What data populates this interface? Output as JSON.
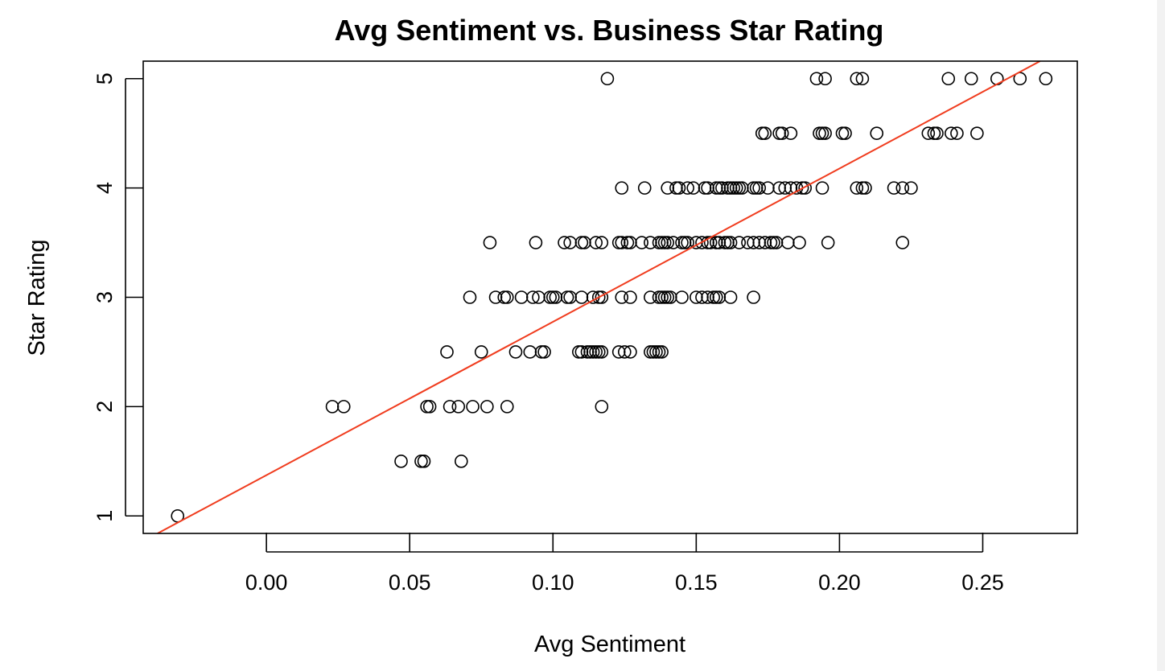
{
  "chart_data": {
    "type": "scatter",
    "title": "Avg Sentiment vs. Business Star Rating",
    "xlabel": "Avg Sentiment",
    "ylabel": "Star Rating",
    "xlim": [
      -0.043,
      0.283
    ],
    "ylim": [
      0.84,
      5.16
    ],
    "x_ticks": [
      0.0,
      0.05,
      0.1,
      0.15,
      0.2,
      0.25
    ],
    "x_tick_labels": [
      "0.00",
      "0.05",
      "0.10",
      "0.15",
      "0.20",
      "0.25"
    ],
    "y_ticks": [
      1,
      2,
      3,
      4,
      5
    ],
    "y_tick_labels": [
      "1",
      "2",
      "3",
      "4",
      "5"
    ],
    "grid": false,
    "legend": "none",
    "point_color": "#000000",
    "regression_line": {
      "color": "#f03c1e",
      "x": [
        -0.038,
        0.27
      ],
      "y": [
        0.84,
        5.16
      ]
    },
    "points": [
      [
        -0.031,
        1.0
      ],
      [
        0.023,
        2.0
      ],
      [
        0.027,
        2.0
      ],
      [
        0.056,
        2.0
      ],
      [
        0.057,
        2.0
      ],
      [
        0.064,
        2.0
      ],
      [
        0.067,
        2.0
      ],
      [
        0.072,
        2.0
      ],
      [
        0.077,
        2.0
      ],
      [
        0.084,
        2.0
      ],
      [
        0.117,
        2.0
      ],
      [
        0.047,
        1.5
      ],
      [
        0.054,
        1.5
      ],
      [
        0.055,
        1.5
      ],
      [
        0.068,
        1.5
      ],
      [
        0.063,
        2.5
      ],
      [
        0.075,
        2.5
      ],
      [
        0.087,
        2.5
      ],
      [
        0.092,
        2.5
      ],
      [
        0.096,
        2.5
      ],
      [
        0.097,
        2.5
      ],
      [
        0.109,
        2.5
      ],
      [
        0.11,
        2.5
      ],
      [
        0.112,
        2.5
      ],
      [
        0.113,
        2.5
      ],
      [
        0.114,
        2.5
      ],
      [
        0.115,
        2.5
      ],
      [
        0.116,
        2.5
      ],
      [
        0.117,
        2.5
      ],
      [
        0.123,
        2.5
      ],
      [
        0.125,
        2.5
      ],
      [
        0.127,
        2.5
      ],
      [
        0.134,
        2.5
      ],
      [
        0.135,
        2.5
      ],
      [
        0.136,
        2.5
      ],
      [
        0.137,
        2.5
      ],
      [
        0.138,
        2.5
      ],
      [
        0.071,
        3.0
      ],
      [
        0.08,
        3.0
      ],
      [
        0.083,
        3.0
      ],
      [
        0.084,
        3.0
      ],
      [
        0.089,
        3.0
      ],
      [
        0.093,
        3.0
      ],
      [
        0.095,
        3.0
      ],
      [
        0.099,
        3.0
      ],
      [
        0.1,
        3.0
      ],
      [
        0.101,
        3.0
      ],
      [
        0.105,
        3.0
      ],
      [
        0.106,
        3.0
      ],
      [
        0.11,
        3.0
      ],
      [
        0.114,
        3.0
      ],
      [
        0.116,
        3.0
      ],
      [
        0.117,
        3.0
      ],
      [
        0.124,
        3.0
      ],
      [
        0.127,
        3.0
      ],
      [
        0.134,
        3.0
      ],
      [
        0.137,
        3.0
      ],
      [
        0.138,
        3.0
      ],
      [
        0.139,
        3.0
      ],
      [
        0.14,
        3.0
      ],
      [
        0.141,
        3.0
      ],
      [
        0.145,
        3.0
      ],
      [
        0.15,
        3.0
      ],
      [
        0.152,
        3.0
      ],
      [
        0.154,
        3.0
      ],
      [
        0.156,
        3.0
      ],
      [
        0.157,
        3.0
      ],
      [
        0.158,
        3.0
      ],
      [
        0.162,
        3.0
      ],
      [
        0.17,
        3.0
      ],
      [
        0.078,
        3.5
      ],
      [
        0.094,
        3.5
      ],
      [
        0.104,
        3.5
      ],
      [
        0.106,
        3.5
      ],
      [
        0.11,
        3.5
      ],
      [
        0.111,
        3.5
      ],
      [
        0.115,
        3.5
      ],
      [
        0.117,
        3.5
      ],
      [
        0.123,
        3.5
      ],
      [
        0.124,
        3.5
      ],
      [
        0.126,
        3.5
      ],
      [
        0.127,
        3.5
      ],
      [
        0.131,
        3.5
      ],
      [
        0.134,
        3.5
      ],
      [
        0.137,
        3.5
      ],
      [
        0.138,
        3.5
      ],
      [
        0.139,
        3.5
      ],
      [
        0.14,
        3.5
      ],
      [
        0.142,
        3.5
      ],
      [
        0.145,
        3.5
      ],
      [
        0.146,
        3.5
      ],
      [
        0.147,
        3.5
      ],
      [
        0.15,
        3.5
      ],
      [
        0.152,
        3.5
      ],
      [
        0.154,
        3.5
      ],
      [
        0.155,
        3.5
      ],
      [
        0.157,
        3.5
      ],
      [
        0.158,
        3.5
      ],
      [
        0.16,
        3.5
      ],
      [
        0.161,
        3.5
      ],
      [
        0.162,
        3.5
      ],
      [
        0.165,
        3.5
      ],
      [
        0.168,
        3.5
      ],
      [
        0.17,
        3.5
      ],
      [
        0.172,
        3.5
      ],
      [
        0.174,
        3.5
      ],
      [
        0.176,
        3.5
      ],
      [
        0.177,
        3.5
      ],
      [
        0.178,
        3.5
      ],
      [
        0.182,
        3.5
      ],
      [
        0.186,
        3.5
      ],
      [
        0.196,
        3.5
      ],
      [
        0.222,
        3.5
      ],
      [
        0.124,
        4.0
      ],
      [
        0.132,
        4.0
      ],
      [
        0.14,
        4.0
      ],
      [
        0.143,
        4.0
      ],
      [
        0.144,
        4.0
      ],
      [
        0.147,
        4.0
      ],
      [
        0.149,
        4.0
      ],
      [
        0.153,
        4.0
      ],
      [
        0.154,
        4.0
      ],
      [
        0.157,
        4.0
      ],
      [
        0.158,
        4.0
      ],
      [
        0.159,
        4.0
      ],
      [
        0.161,
        4.0
      ],
      [
        0.162,
        4.0
      ],
      [
        0.163,
        4.0
      ],
      [
        0.164,
        4.0
      ],
      [
        0.165,
        4.0
      ],
      [
        0.166,
        4.0
      ],
      [
        0.17,
        4.0
      ],
      [
        0.171,
        4.0
      ],
      [
        0.172,
        4.0
      ],
      [
        0.175,
        4.0
      ],
      [
        0.179,
        4.0
      ],
      [
        0.181,
        4.0
      ],
      [
        0.183,
        4.0
      ],
      [
        0.185,
        4.0
      ],
      [
        0.187,
        4.0
      ],
      [
        0.188,
        4.0
      ],
      [
        0.194,
        4.0
      ],
      [
        0.206,
        4.0
      ],
      [
        0.208,
        4.0
      ],
      [
        0.209,
        4.0
      ],
      [
        0.219,
        4.0
      ],
      [
        0.222,
        4.0
      ],
      [
        0.225,
        4.0
      ],
      [
        0.173,
        4.5
      ],
      [
        0.174,
        4.5
      ],
      [
        0.179,
        4.5
      ],
      [
        0.18,
        4.5
      ],
      [
        0.183,
        4.5
      ],
      [
        0.193,
        4.5
      ],
      [
        0.194,
        4.5
      ],
      [
        0.195,
        4.5
      ],
      [
        0.201,
        4.5
      ],
      [
        0.202,
        4.5
      ],
      [
        0.213,
        4.5
      ],
      [
        0.231,
        4.5
      ],
      [
        0.233,
        4.5
      ],
      [
        0.234,
        4.5
      ],
      [
        0.239,
        4.5
      ],
      [
        0.241,
        4.5
      ],
      [
        0.248,
        4.5
      ],
      [
        0.119,
        5.0
      ],
      [
        0.192,
        5.0
      ],
      [
        0.195,
        5.0
      ],
      [
        0.206,
        5.0
      ],
      [
        0.208,
        5.0
      ],
      [
        0.238,
        5.0
      ],
      [
        0.246,
        5.0
      ],
      [
        0.255,
        5.0
      ],
      [
        0.263,
        5.0
      ],
      [
        0.272,
        5.0
      ]
    ]
  }
}
